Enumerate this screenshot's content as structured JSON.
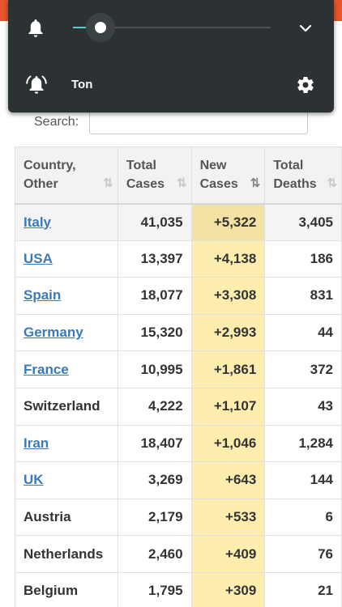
{
  "search": {
    "label": "Search:",
    "value": ""
  },
  "volume_panel": {
    "level_percent": 14,
    "sound_label": "Ton",
    "icons": [
      "bell-icon",
      "chevron-down-icon",
      "bell-ring-icon",
      "gear-icon"
    ]
  },
  "table": {
    "headers": [
      {
        "line1": "Country,",
        "line2": "Other",
        "sort": "⇅"
      },
      {
        "line1": "Total",
        "line2": "Cases",
        "sort": "⇅"
      },
      {
        "line1": "New",
        "line2": "Cases",
        "sort": "⇅"
      },
      {
        "line1": "Total",
        "line2": "Deaths",
        "sort": "⇅"
      }
    ],
    "rows": [
      {
        "country": "Italy",
        "link": true,
        "total_cases": "41,035",
        "new_cases": "+5,322",
        "total_deaths": "3,405"
      },
      {
        "country": "USA",
        "link": true,
        "total_cases": "13,397",
        "new_cases": "+4,138",
        "total_deaths": "186"
      },
      {
        "country": "Spain",
        "link": true,
        "total_cases": "18,077",
        "new_cases": "+3,308",
        "total_deaths": "831"
      },
      {
        "country": "Germany",
        "link": true,
        "total_cases": "15,320",
        "new_cases": "+2,993",
        "total_deaths": "44"
      },
      {
        "country": "France",
        "link": true,
        "total_cases": "10,995",
        "new_cases": "+1,861",
        "total_deaths": "372"
      },
      {
        "country": "Switzerland",
        "link": false,
        "total_cases": "4,222",
        "new_cases": "+1,107",
        "total_deaths": "43"
      },
      {
        "country": "Iran",
        "link": true,
        "total_cases": "18,407",
        "new_cases": "+1,046",
        "total_deaths": "1,284"
      },
      {
        "country": "UK",
        "link": true,
        "total_cases": "3,269",
        "new_cases": "+643",
        "total_deaths": "144"
      },
      {
        "country": "Austria",
        "link": false,
        "total_cases": "2,179",
        "new_cases": "+533",
        "total_deaths": "6"
      },
      {
        "country": "Netherlands",
        "link": false,
        "total_cases": "2,460",
        "new_cases": "+409",
        "total_deaths": "76"
      },
      {
        "country": "Belgium",
        "link": false,
        "total_cases": "1,795",
        "new_cases": "+309",
        "total_deaths": "21"
      }
    ]
  },
  "colors": {
    "accent": "#e8542b",
    "link": "#3a7ab8",
    "new_cases_bg": "#fdeeb0",
    "panel_bg": "#2c3133",
    "slider": "#4fd1c5"
  }
}
